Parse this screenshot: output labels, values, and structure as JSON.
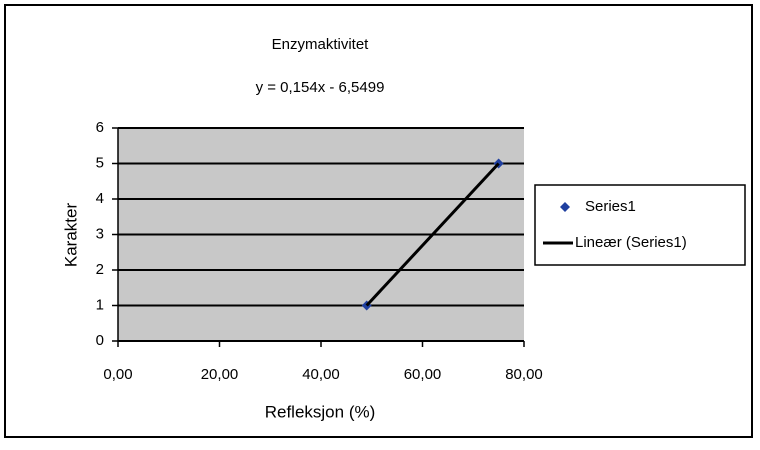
{
  "chart_data": {
    "type": "scatter",
    "title": "Enzymaktivitet",
    "annotation": "y = 0,154x - 6,5499",
    "xlabel": "Refleksjon (%)",
    "ylabel": "Karakter",
    "xlim": [
      0,
      80
    ],
    "xticks": [
      {
        "value": 0,
        "label": "0,00"
      },
      {
        "value": 20,
        "label": "20,00"
      },
      {
        "value": 40,
        "label": "40,00"
      },
      {
        "value": 60,
        "label": "60,00"
      },
      {
        "value": 80,
        "label": "80,00"
      }
    ],
    "ylim": [
      0,
      6
    ],
    "yticks": [
      0,
      1,
      2,
      3,
      4,
      5,
      6
    ],
    "grid": true,
    "legend": "right",
    "series": [
      {
        "name": "Series1",
        "color": "#1f3f9f",
        "style": "marker",
        "x": [
          49,
          75
        ],
        "values": [
          1,
          5
        ]
      },
      {
        "name": "Lineær (Series1)",
        "color": "#000000",
        "style": "line",
        "x": [
          49,
          75
        ],
        "values": [
          1,
          5
        ]
      }
    ]
  }
}
